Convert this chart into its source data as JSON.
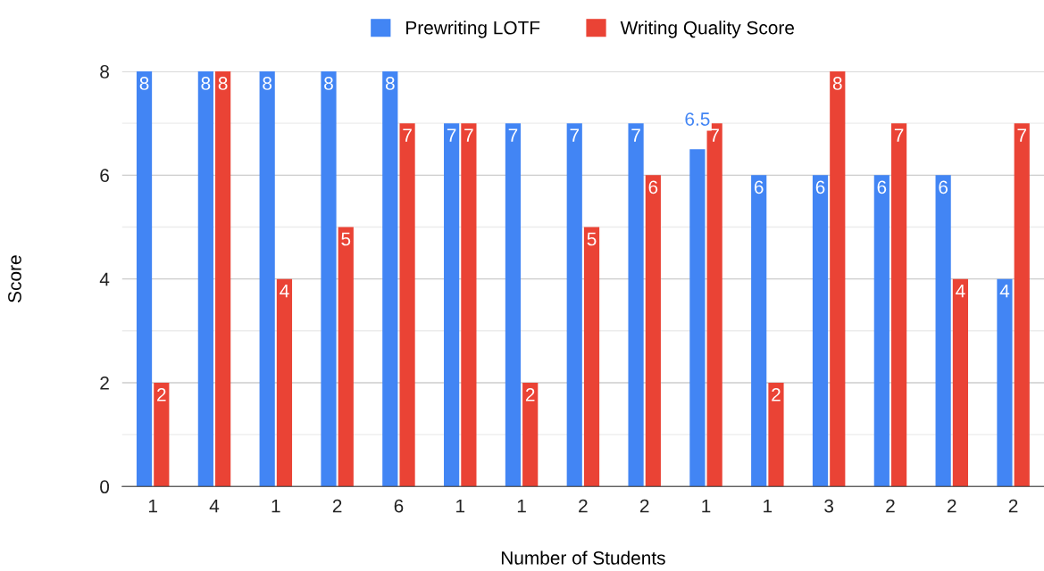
{
  "chart_data": {
    "type": "bar",
    "xlabel": "Number of Students",
    "ylabel": "Score",
    "categories": [
      "1",
      "4",
      "1",
      "2",
      "6",
      "1",
      "1",
      "2",
      "2",
      "1",
      "1",
      "3",
      "2",
      "2",
      "2"
    ],
    "series": [
      {
        "name": "Prewriting LOTF",
        "color": "#4285f4",
        "values": [
          8,
          8,
          8,
          8,
          8,
          7,
          7,
          7,
          7,
          6.5,
          6,
          6,
          6,
          6,
          4
        ]
      },
      {
        "name": "Writing Quality Score",
        "color": "#ea4335",
        "values": [
          2,
          8,
          4,
          5,
          7,
          7,
          2,
          5,
          6,
          7,
          2,
          8,
          7,
          4,
          7
        ]
      }
    ],
    "ylim": [
      0,
      8
    ],
    "yticks": [
      0,
      {
        "value": 1,
        "label": null
      },
      2,
      {
        "value": 3,
        "label": null
      },
      4,
      {
        "value": 5,
        "label": null
      },
      6,
      {
        "value": 7,
        "label": null
      },
      8
    ],
    "grid": "y",
    "legend": "top",
    "data_labels": true
  }
}
